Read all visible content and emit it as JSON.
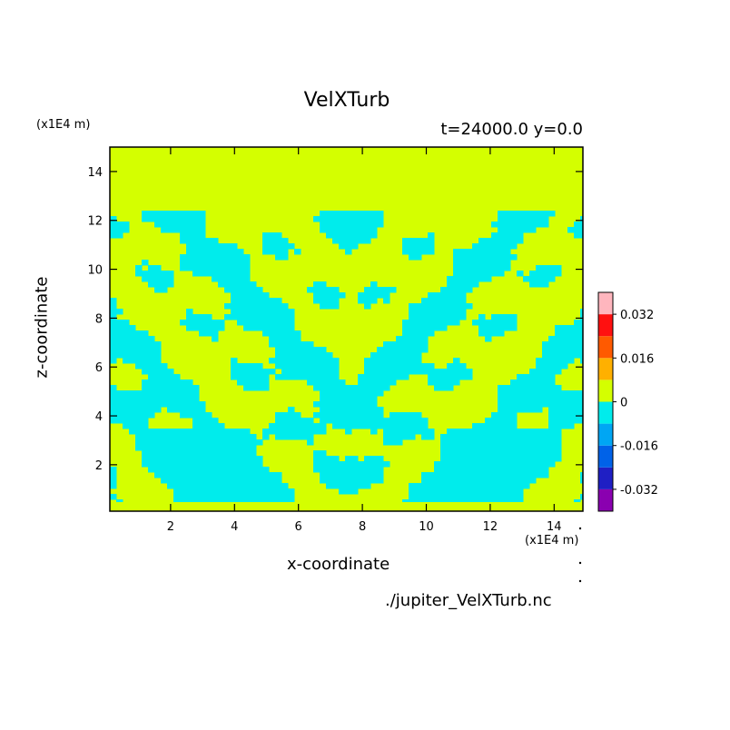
{
  "chart_data": {
    "type": "heatmap",
    "title": "VelXTurb",
    "subtitle": "t=24000.0 y=0.0",
    "xlabel": "x-coordinate",
    "ylabel": "z-coordinate",
    "x_unit_label": "(x1E4 m)",
    "y_unit_label": "(x1E4 m)",
    "xlim": [
      0.1,
      14.9
    ],
    "ylim": [
      0.1,
      15.0
    ],
    "x_ticks": [
      2,
      4,
      6,
      8,
      10,
      12,
      14
    ],
    "y_ticks": [
      2,
      4,
      6,
      8,
      10,
      12,
      14
    ],
    "turbulent_layer_top": 12.4,
    "colorbar": {
      "levels": [
        -0.04,
        -0.032,
        -0.024,
        -0.016,
        -0.008,
        0,
        0.008,
        0.016,
        0.024,
        0.032,
        0.04
      ],
      "colors": [
        "#8a00b0",
        "#1f1fc4",
        "#0062e8",
        "#00a6f4",
        "#00ecec",
        "#d4ff00",
        "#ffb000",
        "#ff5a00",
        "#ff1010",
        "#ffb6be"
      ],
      "tick_labels": [
        "-0.032",
        "-0.016",
        "0",
        "0.016",
        "0.032"
      ],
      "tick_values": [
        -0.032,
        -0.016,
        0,
        0.016,
        0.032
      ]
    },
    "footer_filename": "./jupiter_VelXTurb.nc"
  }
}
